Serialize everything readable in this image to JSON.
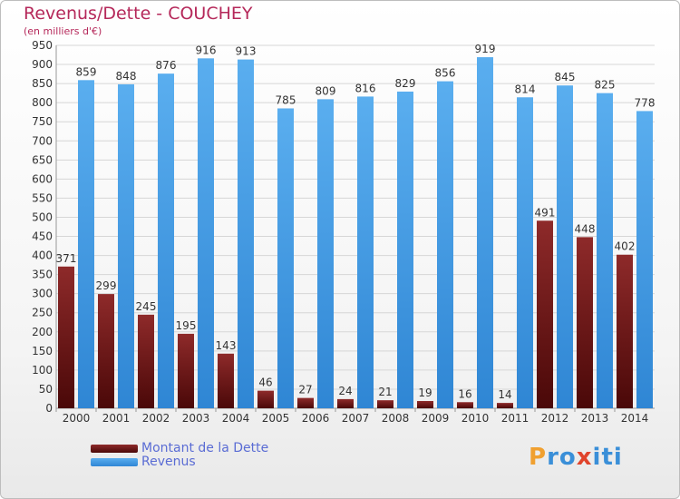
{
  "chart_data": {
    "type": "bar",
    "title": "Revenus/Dette - COUCHEY",
    "subtitle": "(en milliers d'€)",
    "categories": [
      "2000",
      "2001",
      "2002",
      "2003",
      "2004",
      "2005",
      "2006",
      "2007",
      "2008",
      "2009",
      "2010",
      "2011",
      "2012",
      "2013",
      "2014"
    ],
    "series": [
      {
        "name": "Montant de la Dette",
        "color": "#7a1a1a",
        "values": [
          371,
          299,
          245,
          195,
          143,
          46,
          27,
          24,
          21,
          19,
          16,
          14,
          491,
          448,
          402
        ]
      },
      {
        "name": "Revenus",
        "color": "#4aa0e6",
        "values": [
          859,
          848,
          876,
          916,
          913,
          785,
          809,
          816,
          829,
          856,
          919,
          814,
          845,
          825,
          778
        ]
      }
    ],
    "ylim": [
      0,
      950
    ],
    "ytick_step": 50,
    "grid": true,
    "legend_position": "bottom-left"
  },
  "logo": {
    "letters": [
      "P",
      "r",
      "o",
      "x",
      "i",
      "t",
      "i"
    ],
    "colors": [
      "#f0a030",
      "#3a8fd8",
      "#3a8fd8",
      "#e0442c",
      "#3a8fd8",
      "#3a8fd8",
      "#3a8fd8"
    ]
  }
}
